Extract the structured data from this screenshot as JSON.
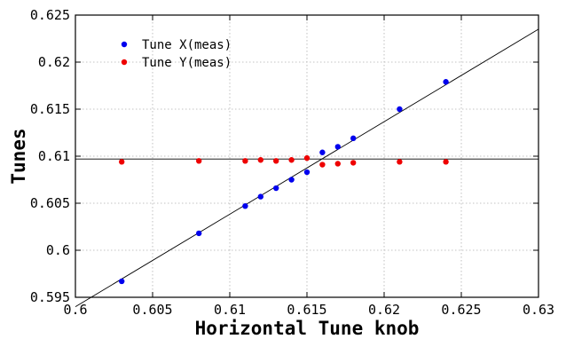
{
  "chart_data": {
    "type": "scatter",
    "xlabel": "Horizontal Tune knob",
    "ylabel": "Tunes",
    "xlim": [
      0.6,
      0.63
    ],
    "ylim": [
      0.595,
      0.625
    ],
    "xticks": [
      "0.6",
      "0.605",
      "0.61",
      "0.615",
      "0.62",
      "0.625",
      "0.63"
    ],
    "yticks": [
      "0.595",
      "0.6",
      "0.605",
      "0.61",
      "0.615",
      "0.62",
      "0.625"
    ],
    "grid": true,
    "legend_position": "top-left",
    "series": [
      {
        "name": "Tune X(meas)",
        "color": "#0000ee",
        "x": [
          0.603,
          0.608,
          0.611,
          0.612,
          0.613,
          0.614,
          0.615,
          0.616,
          0.617,
          0.618,
          0.621,
          0.624
        ],
        "y": [
          0.5967,
          0.6018,
          0.6047,
          0.6057,
          0.6066,
          0.6075,
          0.6083,
          0.6104,
          0.611,
          0.6119,
          0.615,
          0.6179
        ]
      },
      {
        "name": "Tune Y(meas)",
        "color": "#ee0000",
        "x": [
          0.603,
          0.608,
          0.611,
          0.612,
          0.613,
          0.614,
          0.615,
          0.616,
          0.617,
          0.618,
          0.621,
          0.624
        ],
        "y": [
          0.6094,
          0.6095,
          0.6095,
          0.6096,
          0.6095,
          0.6096,
          0.6098,
          0.6091,
          0.6092,
          0.6093,
          0.6094,
          0.6094
        ]
      }
    ],
    "fit_lines": [
      {
        "x": [
          0.6,
          0.63
        ],
        "y": [
          0.594,
          0.6235
        ]
      },
      {
        "x": [
          0.6,
          0.63
        ],
        "y": [
          0.6097,
          0.6097
        ]
      }
    ]
  }
}
